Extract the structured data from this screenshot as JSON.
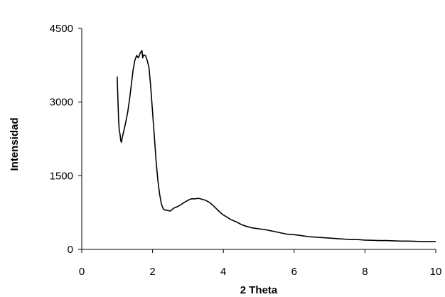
{
  "chart_data": {
    "type": "line",
    "xlabel": "2 Theta",
    "ylabel": "Intensidad",
    "xlim": [
      0,
      10
    ],
    "ylim": [
      0,
      4500
    ],
    "x_ticks": [
      0,
      2,
      4,
      6,
      8,
      10
    ],
    "x_tick_labels": [
      "0",
      "2",
      "4",
      "6",
      "8",
      "10"
    ],
    "y_ticks": [
      0,
      1500,
      3000,
      4500
    ],
    "y_tick_labels": [
      "0",
      "1500",
      "3000",
      "4500"
    ],
    "grid": false,
    "legend": "none",
    "series": [
      {
        "color": "#000000",
        "x": [
          1.0,
          1.02,
          1.04,
          1.06,
          1.08,
          1.1,
          1.12,
          1.15,
          1.2,
          1.25,
          1.3,
          1.35,
          1.4,
          1.45,
          1.5,
          1.55,
          1.6,
          1.65,
          1.7,
          1.72,
          1.75,
          1.8,
          1.85,
          1.9,
          1.95,
          2.0,
          2.05,
          2.1,
          2.15,
          2.2,
          2.25,
          2.3,
          2.35,
          2.4,
          2.5,
          2.6,
          2.7,
          2.8,
          2.9,
          3.0,
          3.1,
          3.2,
          3.3,
          3.4,
          3.5,
          3.6,
          3.7,
          3.8,
          3.9,
          4.0,
          4.1,
          4.2,
          4.3,
          4.4,
          4.5,
          4.6,
          4.7,
          4.8,
          4.9,
          5.0,
          5.2,
          5.4,
          5.6,
          5.8,
          6.0,
          6.2,
          6.4,
          6.6,
          6.8,
          7.0,
          7.2,
          7.4,
          7.6,
          7.8,
          8.0,
          8.2,
          8.4,
          8.6,
          8.8,
          9.0,
          9.2,
          9.4,
          9.6,
          9.8,
          10.0
        ],
        "y": [
          3520,
          3100,
          2650,
          2420,
          2350,
          2220,
          2180,
          2300,
          2450,
          2620,
          2800,
          3050,
          3350,
          3650,
          3850,
          3950,
          3900,
          4000,
          4050,
          3900,
          3960,
          3950,
          3850,
          3700,
          3300,
          2800,
          2300,
          1800,
          1400,
          1120,
          920,
          830,
          800,
          800,
          780,
          840,
          870,
          910,
          960,
          1000,
          1030,
          1030,
          1040,
          1020,
          1000,
          960,
          900,
          830,
          760,
          700,
          660,
          610,
          580,
          550,
          510,
          480,
          460,
          440,
          430,
          420,
          400,
          370,
          340,
          310,
          300,
          280,
          260,
          250,
          240,
          230,
          220,
          210,
          200,
          200,
          190,
          185,
          180,
          180,
          175,
          170,
          170,
          165,
          160,
          160,
          160
        ]
      }
    ]
  }
}
